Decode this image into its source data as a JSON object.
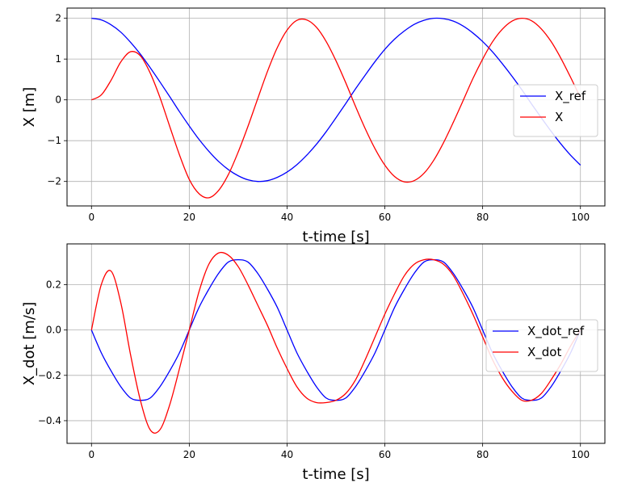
{
  "chart_data": [
    {
      "type": "line",
      "title": "",
      "xlabel": "t-time [s]",
      "ylabel": "X [m]",
      "xlim": [
        -5,
        105
      ],
      "ylim": [
        -2.6,
        2.25
      ],
      "xticks": [
        0,
        20,
        40,
        60,
        80,
        100
      ],
      "yticks": [
        -2,
        -1,
        0,
        1,
        2
      ],
      "xtick_labels": [
        "0",
        "20",
        "40",
        "60",
        "80",
        "100"
      ],
      "ytick_labels": [
        "−2",
        "−1",
        "0",
        "1",
        "2"
      ],
      "grid": true,
      "legend_position": "center-right",
      "series": [
        {
          "name": "X_ref",
          "color": "#0000ff",
          "x": [
            0,
            2,
            4,
            6,
            8,
            10,
            12,
            14,
            16,
            18,
            20,
            22,
            24,
            26,
            28,
            30,
            32,
            34,
            36,
            38,
            40,
            42,
            44,
            46,
            48,
            50,
            52,
            54,
            56,
            58,
            60,
            62,
            64,
            66,
            68,
            70,
            72,
            74,
            76,
            78,
            80,
            82,
            84,
            86,
            88,
            90,
            92,
            94,
            96,
            98,
            100
          ],
          "y": [
            2.0,
            1.96,
            1.84,
            1.66,
            1.41,
            1.12,
            0.79,
            0.44,
            0.08,
            -0.29,
            -0.64,
            -0.97,
            -1.26,
            -1.51,
            -1.71,
            -1.86,
            -1.96,
            -2.0,
            -1.98,
            -1.9,
            -1.77,
            -1.59,
            -1.36,
            -1.09,
            -0.78,
            -0.44,
            -0.09,
            0.27,
            0.61,
            0.94,
            1.24,
            1.49,
            1.69,
            1.85,
            1.95,
            2.0,
            1.99,
            1.93,
            1.81,
            1.64,
            1.43,
            1.18,
            0.89,
            0.58,
            0.25,
            -0.1,
            -0.44,
            -0.77,
            -1.08,
            -1.36,
            -1.6
          ]
        },
        {
          "name": "X",
          "color": "#ff0000",
          "x": [
            0,
            2,
            4,
            6,
            8,
            10,
            12,
            14,
            16,
            18,
            20,
            22,
            24,
            26,
            28,
            30,
            32,
            34,
            36,
            38,
            40,
            42,
            44,
            46,
            48,
            50,
            52,
            54,
            56,
            58,
            60,
            62,
            64,
            66,
            68,
            70,
            72,
            74,
            76,
            78,
            80,
            82,
            84,
            86,
            88,
            90,
            92,
            94,
            96,
            98,
            100
          ],
          "y": [
            0.0,
            0.12,
            0.48,
            0.93,
            1.18,
            1.08,
            0.66,
            0.06,
            -0.65,
            -1.35,
            -1.95,
            -2.3,
            -2.4,
            -2.22,
            -1.83,
            -1.28,
            -0.65,
            0.03,
            0.7,
            1.28,
            1.71,
            1.95,
            1.96,
            1.78,
            1.43,
            0.96,
            0.42,
            -0.16,
            -0.71,
            -1.2,
            -1.6,
            -1.88,
            -2.01,
            -1.98,
            -1.8,
            -1.48,
            -1.05,
            -0.55,
            -0.02,
            0.52,
            1.0,
            1.42,
            1.73,
            1.93,
            2.0,
            1.94,
            1.74,
            1.43,
            1.02,
            0.55,
            0.05
          ]
        }
      ]
    },
    {
      "type": "line",
      "title": "",
      "xlabel": "t-time [s]",
      "ylabel": "X_dot [m/s]",
      "xlim": [
        -5,
        105
      ],
      "ylim": [
        -0.5,
        0.38
      ],
      "xticks": [
        0,
        20,
        40,
        60,
        80,
        100
      ],
      "yticks": [
        -0.4,
        -0.2,
        0.0,
        0.2
      ],
      "xtick_labels": [
        "0",
        "20",
        "40",
        "60",
        "80",
        "100"
      ],
      "ytick_labels": [
        "−0.4",
        "−0.2",
        "0.0",
        "0.2"
      ],
      "grid": true,
      "legend_position": "center-right",
      "series": [
        {
          "name": "X_dot_ref",
          "color": "#0000ff",
          "x": [
            0,
            2,
            4,
            6,
            8,
            10,
            12,
            14,
            16,
            18,
            20,
            22,
            24,
            26,
            28,
            30,
            32,
            34,
            36,
            38,
            40,
            42,
            44,
            46,
            48,
            50,
            52,
            54,
            56,
            58,
            60,
            62,
            64,
            66,
            68,
            70,
            72,
            74,
            76,
            78,
            80,
            82,
            84,
            86,
            88,
            90,
            92,
            94,
            96,
            98,
            100
          ],
          "y": [
            0.0,
            -0.1,
            -0.18,
            -0.25,
            -0.3,
            -0.31,
            -0.3,
            -0.25,
            -0.18,
            -0.1,
            0.0,
            0.1,
            0.18,
            0.25,
            0.3,
            0.31,
            0.3,
            0.25,
            0.18,
            0.1,
            0.0,
            -0.1,
            -0.18,
            -0.25,
            -0.3,
            -0.31,
            -0.3,
            -0.25,
            -0.18,
            -0.1,
            0.0,
            0.1,
            0.18,
            0.25,
            0.3,
            0.31,
            0.3,
            0.25,
            0.18,
            0.1,
            0.0,
            -0.1,
            -0.18,
            -0.25,
            -0.3,
            -0.31,
            -0.3,
            -0.25,
            -0.18,
            -0.1,
            0.0
          ]
        },
        {
          "name": "X_dot",
          "color": "#ff0000",
          "x": [
            0,
            2,
            4,
            6,
            8,
            10,
            12,
            14,
            16,
            18,
            20,
            22,
            24,
            26,
            28,
            30,
            32,
            34,
            36,
            38,
            40,
            42,
            44,
            46,
            48,
            50,
            52,
            54,
            56,
            58,
            60,
            62,
            64,
            66,
            68,
            70,
            72,
            74,
            76,
            78,
            80,
            82,
            84,
            86,
            88,
            90,
            92,
            94,
            96,
            98,
            100
          ],
          "y": [
            0.0,
            0.2,
            0.26,
            0.12,
            -0.11,
            -0.31,
            -0.44,
            -0.44,
            -0.33,
            -0.17,
            0.0,
            0.17,
            0.29,
            0.34,
            0.33,
            0.28,
            0.2,
            0.11,
            0.02,
            -0.08,
            -0.17,
            -0.25,
            -0.3,
            -0.32,
            -0.32,
            -0.31,
            -0.28,
            -0.22,
            -0.13,
            -0.03,
            0.07,
            0.16,
            0.24,
            0.29,
            0.31,
            0.31,
            0.29,
            0.24,
            0.16,
            0.07,
            -0.03,
            -0.13,
            -0.21,
            -0.27,
            -0.31,
            -0.31,
            -0.28,
            -0.22,
            -0.15,
            -0.07,
            0.0
          ]
        }
      ]
    }
  ]
}
